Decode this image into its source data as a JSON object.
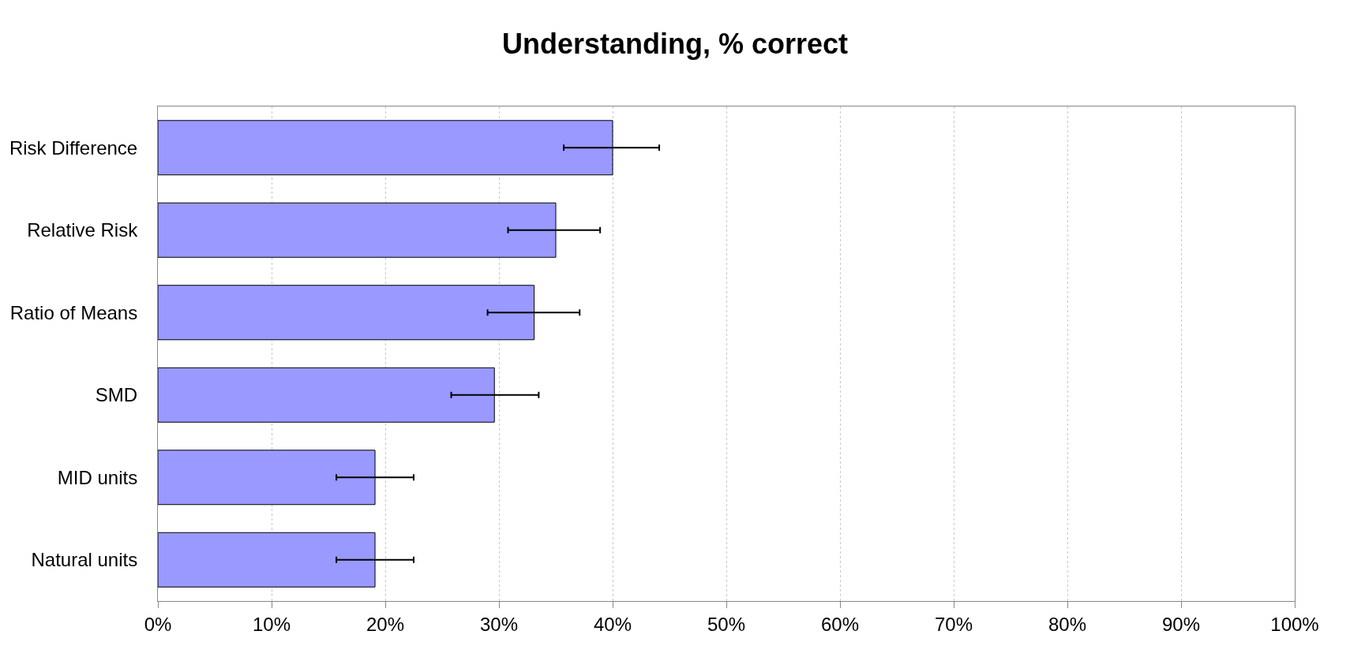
{
  "chart_data": {
    "type": "bar",
    "orientation": "horizontal",
    "title": "Understanding, % correct",
    "categories": [
      "Risk Difference",
      "Relative Risk",
      "Ratio of Means",
      "SMD",
      "MID units",
      "Natural units"
    ],
    "values": [
      40.0,
      35.0,
      33.1,
      29.6,
      19.1,
      19.1
    ],
    "errors": [
      [
        35.7,
        44.1
      ],
      [
        30.8,
        38.9
      ],
      [
        29.0,
        37.1
      ],
      [
        25.8,
        33.5
      ],
      [
        15.7,
        22.5
      ],
      [
        15.7,
        22.5
      ]
    ],
    "color": "#9999ff",
    "xlim": [
      0,
      100
    ],
    "xticks": [
      {
        "value": 0,
        "label": "0%"
      },
      {
        "value": 10,
        "label": "10%"
      },
      {
        "value": 20,
        "label": "20%"
      },
      {
        "value": 30,
        "label": "30%"
      },
      {
        "value": 40,
        "label": "40%"
      },
      {
        "value": 50,
        "label": "50%"
      },
      {
        "value": 60,
        "label": "60%"
      },
      {
        "value": 70,
        "label": "70%"
      },
      {
        "value": 80,
        "label": "80%"
      },
      {
        "value": 90,
        "label": "90%"
      },
      {
        "value": 100,
        "label": "100%"
      }
    ],
    "grid": "x",
    "legend": false
  }
}
